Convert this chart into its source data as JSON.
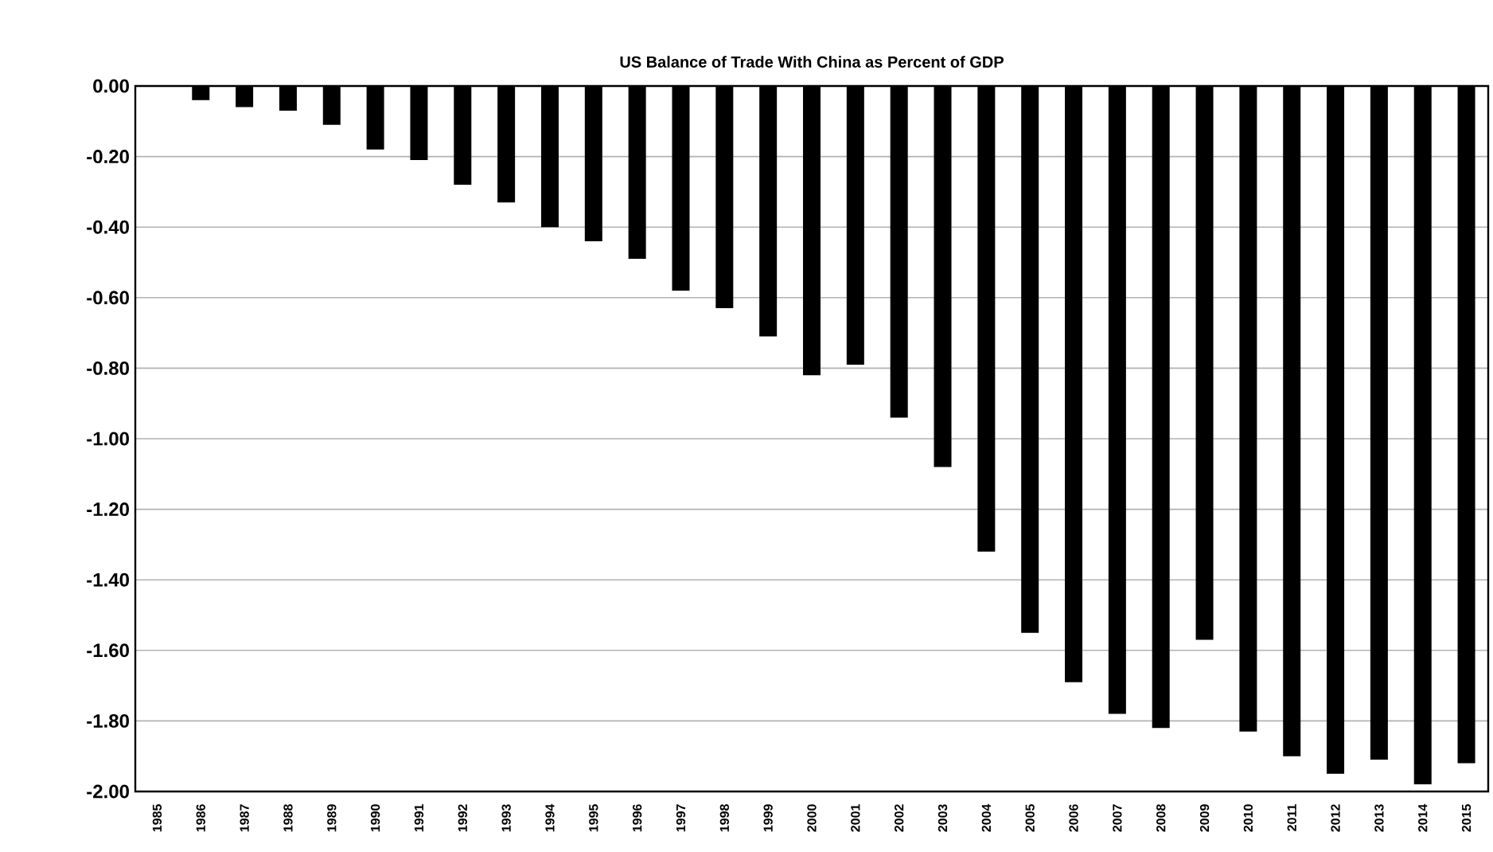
{
  "chart_data": {
    "type": "bar",
    "title": "US Balance of Trade With China as Percent of GDP",
    "categories": [
      "1985",
      "1986",
      "1987",
      "1988",
      "1989",
      "1990",
      "1991",
      "1992",
      "1993",
      "1994",
      "1995",
      "1996",
      "1997",
      "1998",
      "1999",
      "2000",
      "2001",
      "2002",
      "2003",
      "2004",
      "2005",
      "2006",
      "2007",
      "2008",
      "2009",
      "2010",
      "2011",
      "2012",
      "2013",
      "2014",
      "2015"
    ],
    "values": [
      null,
      -0.04,
      -0.06,
      -0.07,
      -0.11,
      -0.18,
      -0.21,
      -0.28,
      -0.33,
      -0.4,
      -0.44,
      -0.49,
      -0.58,
      -0.63,
      -0.71,
      -0.82,
      -0.79,
      -0.94,
      -1.08,
      -1.32,
      -1.55,
      -1.69,
      -1.78,
      -1.82,
      -1.57,
      -1.83,
      -1.9,
      -1.95,
      -1.91,
      -1.98,
      -1.92
    ],
    "color": "#000000",
    "ylim": [
      -2.0,
      0.0
    ],
    "yticks": [
      {
        "value": 0.0,
        "label": "0.00"
      },
      {
        "value": -0.2,
        "label": "-0.20"
      },
      {
        "value": -0.4,
        "label": "-0.40"
      },
      {
        "value": -0.6,
        "label": "-0.60"
      },
      {
        "value": -0.8,
        "label": "-0.80"
      },
      {
        "value": -1.0,
        "label": "-1.00"
      },
      {
        "value": -1.2,
        "label": "-1.20"
      },
      {
        "value": -1.4,
        "label": "-1.40"
      },
      {
        "value": -1.6,
        "label": "-1.60"
      },
      {
        "value": -1.8,
        "label": "-1.80"
      },
      {
        "value": -2.0,
        "label": "-2.00"
      }
    ],
    "grid": "y"
  }
}
